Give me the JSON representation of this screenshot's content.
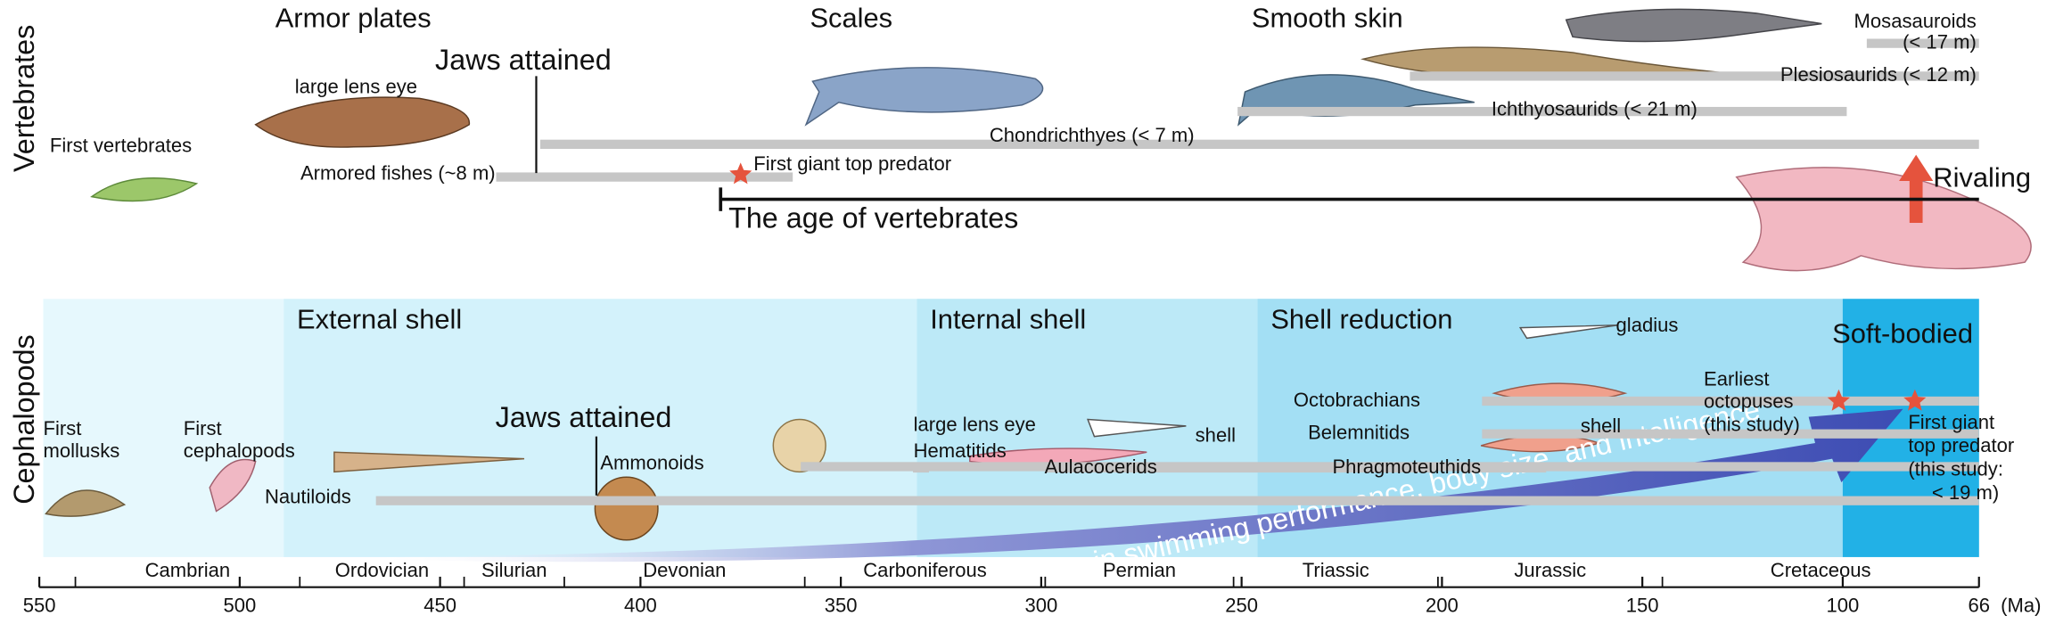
{
  "side_labels": {
    "vertebrates": "Vertebrates",
    "cephalopods": "Cephalopods"
  },
  "axis": {
    "lim": [
      550,
      66
    ],
    "ticks": [
      550,
      500,
      450,
      400,
      350,
      300,
      250,
      200,
      150,
      100,
      66
    ],
    "unit": "(Ma)"
  },
  "periods": [
    {
      "name": "Cambrian",
      "range": [
        541,
        485
      ]
    },
    {
      "name": "Ordovician",
      "range": [
        485,
        444
      ]
    },
    {
      "name": "Silurian",
      "range": [
        444,
        419
      ]
    },
    {
      "name": "Devonian",
      "range": [
        419,
        359
      ]
    },
    {
      "name": "Carboniferous",
      "range": [
        359,
        299
      ]
    },
    {
      "name": "Permian",
      "range": [
        299,
        252
      ]
    },
    {
      "name": "Triassic",
      "range": [
        252,
        201
      ]
    },
    {
      "name": "Jurassic",
      "range": [
        201,
        145
      ]
    },
    {
      "name": "Cretaceous",
      "range": [
        145,
        66
      ]
    }
  ],
  "vertebrates": {
    "stages": [
      "Armor plates",
      "Scales",
      "Smooth skin"
    ],
    "first_vertebrates": "First vertebrates",
    "eye_label": "large lens eye",
    "jaws": {
      "label": "Jaws attained",
      "ma": 426
    },
    "taxa": [
      {
        "label": "Armored fishes (~8 m)",
        "range": [
          436,
          362
        ]
      },
      {
        "label": "Chondrichthyes (< 7 m)",
        "range": [
          425,
          66
        ]
      },
      {
        "label": "Ichthyosaurids (< 21 m)",
        "range": [
          251,
          99
        ]
      },
      {
        "label": "Plesiosaurids (< 12 m)",
        "range": [
          208,
          66
        ]
      },
      {
        "label": [
          "Mosasauroids",
          "(< 17 m)"
        ],
        "range": [
          94,
          66
        ]
      }
    ],
    "top_predator": {
      "label": "First giant top predator",
      "ma": 375
    },
    "age": {
      "label": "The age of vertebrates",
      "start": 380
    },
    "rivaling": "Rivaling"
  },
  "cephalopods": {
    "stages": [
      {
        "label": "External shell",
        "start": 489,
        "color": "#d3f2fb"
      },
      {
        "label": "Internal shell",
        "start": 331,
        "color": "#bce9f7"
      },
      {
        "label": "Shell reduction",
        "start": 246,
        "color": "#a3dff4"
      },
      {
        "label": "Soft-bodied",
        "start": 100,
        "color": "#22b1e6"
      }
    ],
    "first_mollusks": [
      "First",
      "mollusks"
    ],
    "first_cephalopods": [
      "First",
      "cephalopods"
    ],
    "jaws": {
      "label": "Jaws attained",
      "ma": 411
    },
    "eye_label": "large lens eye",
    "shell_label": "shell",
    "gladius_label": "gladius",
    "belemnite_shell_label": "shell",
    "taxa": [
      {
        "label": "Nautiloids",
        "range": [
          466,
          66
        ]
      },
      {
        "label": "Ammonoids",
        "range": [
          360,
          66
        ]
      },
      {
        "label": "Hematitids",
        "range": [
          332,
          328
        ]
      },
      {
        "label": "Aulacocerids",
        "range": [
          299,
          202
        ]
      },
      {
        "label": "Phragmoteuthids",
        "range": [
          195,
          174
        ]
      },
      {
        "label": "Belemnitids",
        "range": [
          190,
          66
        ]
      },
      {
        "label": "Octobrachians",
        "range": [
          190,
          66
        ]
      }
    ],
    "earliest_octopuses": {
      "label": [
        "Earliest",
        "octopuses",
        "(this study)"
      ],
      "ma": 101
    },
    "top_predator": {
      "label": [
        "First giant",
        "top predator",
        "(this study:",
        "< 19 m)"
      ],
      "ma": 82
    },
    "trend": "Increase in swimming performance, body size, and intelligence"
  }
}
